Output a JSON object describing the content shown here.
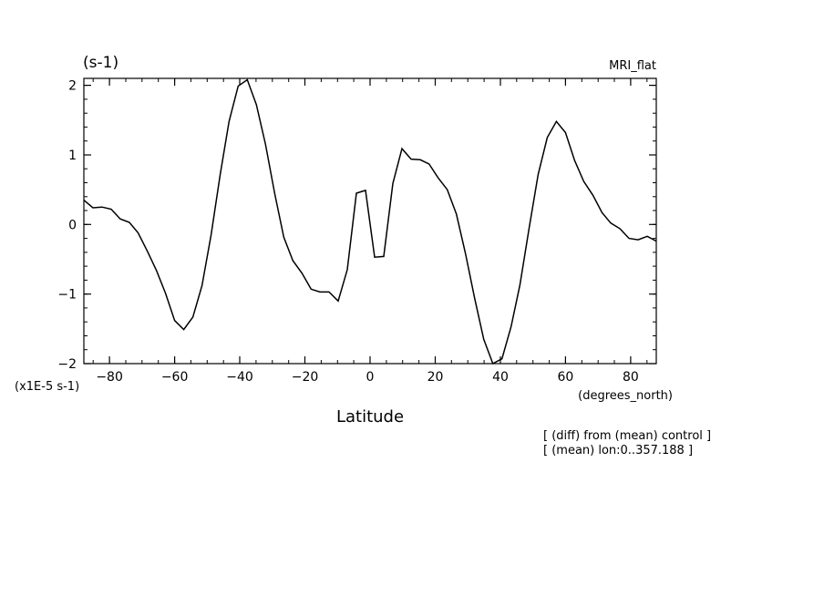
{
  "chart_data": {
    "type": "line",
    "title": "MRI_flat",
    "ylabel": "(s-1)",
    "y_scale_label": "(x1E-5 s-1)",
    "xlabel": "Latitude",
    "x_unit_label": "(degrees_north)",
    "annotations": [
      "[ (diff) from (mean) control ]",
      "[ (mean) lon:0..357.188 ]"
    ],
    "xlim": [
      -87.86,
      87.86
    ],
    "ylim": [
      -2,
      2.1
    ],
    "x_ticks": [
      -80,
      -60,
      -40,
      -20,
      0,
      20,
      40,
      60,
      80
    ],
    "x_tick_labels": [
      "-80",
      "-60",
      "-40",
      "-20",
      "0",
      "20",
      "40",
      "60",
      "80"
    ],
    "y_ticks": [
      -2,
      -1,
      0,
      1,
      2
    ],
    "y_tick_labels": [
      "-2",
      "-1",
      "0",
      "1",
      "2"
    ],
    "grid": false,
    "series": [
      {
        "x": [
          -87.86,
          -85.1,
          -82.3,
          -79.5,
          -76.7,
          -73.9,
          -71.2,
          -68.4,
          -65.6,
          -62.8,
          -60.0,
          -57.2,
          -54.4,
          -51.6,
          -48.8,
          -46.0,
          -43.3,
          -40.5,
          -37.7,
          -34.9,
          -32.1,
          -29.3,
          -26.5,
          -23.7,
          -20.9,
          -18.1,
          -15.4,
          -12.6,
          -9.8,
          -7.0,
          -4.2,
          -1.4,
          1.4,
          4.2,
          7.0,
          9.8,
          12.6,
          15.4,
          18.1,
          20.9,
          23.7,
          26.5,
          29.3,
          32.1,
          34.9,
          37.7,
          40.5,
          43.3,
          46.0,
          48.8,
          51.6,
          54.4,
          57.2,
          60.0,
          62.8,
          65.6,
          68.4,
          71.2,
          73.9,
          76.7,
          79.5,
          82.3,
          85.1,
          87.86
        ],
        "values": [
          0.35,
          0.24,
          0.25,
          0.22,
          0.08,
          0.03,
          -0.12,
          -0.38,
          -0.66,
          -0.99,
          -1.38,
          -1.51,
          -1.33,
          -0.88,
          -0.15,
          0.72,
          1.48,
          1.99,
          2.08,
          1.72,
          1.15,
          0.45,
          -0.18,
          -0.52,
          -0.7,
          -0.93,
          -0.97,
          -0.97,
          -1.1,
          -0.65,
          0.45,
          0.49,
          -0.47,
          -0.46,
          0.59,
          1.09,
          0.94,
          0.93,
          0.87,
          0.67,
          0.5,
          0.15,
          -0.42,
          -1.06,
          -1.65,
          -2.04,
          -1.93,
          -1.47,
          -0.87,
          -0.06,
          0.72,
          1.25,
          1.48,
          1.32,
          0.92,
          0.62,
          0.42,
          0.17,
          0.02,
          -0.06,
          -0.2,
          -0.22,
          -0.17,
          -0.24
        ]
      }
    ]
  }
}
